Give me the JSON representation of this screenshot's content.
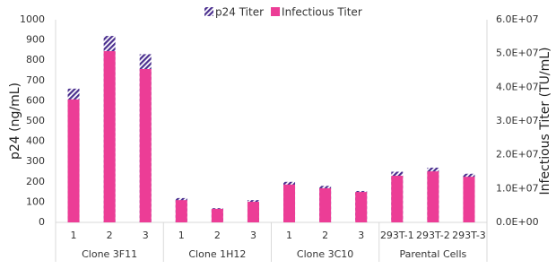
{
  "chart_data": {
    "type": "bar",
    "ylabel": "p24 (ng/mL)",
    "y2label": "Infectious Titer (TU/mL)",
    "groups": [
      {
        "name": "Clone 3F11",
        "categories": [
          "1",
          "2",
          "3"
        ]
      },
      {
        "name": "Clone 1H12",
        "categories": [
          "1",
          "2",
          "3"
        ]
      },
      {
        "name": "Clone 3C10",
        "categories": [
          "1",
          "2",
          "3"
        ]
      },
      {
        "name": "Parental Cells",
        "categories": [
          "293T-1",
          "293T-2",
          "293T-3"
        ]
      }
    ],
    "series": [
      {
        "name": "p24 Titer",
        "color": "#4b2f8f",
        "pattern": "hatch",
        "axis": "y",
        "values": [
          660,
          920,
          830,
          120,
          70,
          110,
          200,
          180,
          155,
          250,
          270,
          240
        ]
      },
      {
        "name": "Infectious Titer",
        "color": "#ec3d96",
        "axis": "y2",
        "values": [
          36400000,
          50700000,
          45400000,
          6600000,
          4000000,
          6100000,
          11200000,
          10100000,
          9000000,
          13800000,
          15100000,
          13500000
        ]
      }
    ],
    "ylim": [
      0,
      1000
    ],
    "yticks": [
      0,
      100,
      200,
      300,
      400,
      500,
      600,
      700,
      800,
      900,
      1000
    ],
    "y2lim": [
      0,
      60000000
    ],
    "y2ticks": [
      {
        "value": 0,
        "label": "0.0E+00"
      },
      {
        "value": 10000000,
        "label": "1.0E+07"
      },
      {
        "value": 20000000,
        "label": "2.0E+07"
      },
      {
        "value": 30000000,
        "label": "3.0E+07"
      },
      {
        "value": 40000000,
        "label": "4.0E+07"
      },
      {
        "value": 50000000,
        "label": "5.0E+07"
      },
      {
        "value": 60000000,
        "label": "6.0E+07"
      }
    ],
    "grid": false
  }
}
